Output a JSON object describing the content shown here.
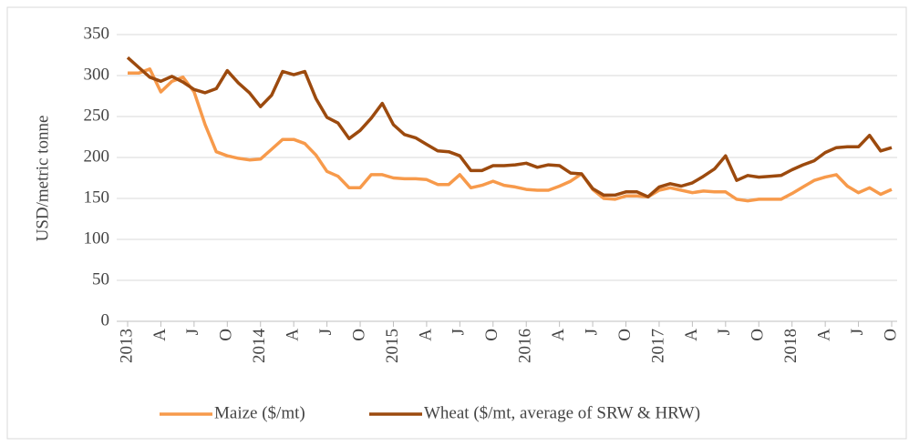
{
  "chart_data": {
    "type": "line",
    "y_label": "USD/metric tonne",
    "categories": [
      "2013",
      null,
      null,
      "A",
      null,
      null,
      "J",
      null,
      null,
      "O",
      null,
      null,
      "2014",
      null,
      null,
      "A",
      null,
      null,
      "J",
      null,
      null,
      "O",
      null,
      null,
      "2015",
      null,
      null,
      "A",
      null,
      null,
      "J",
      null,
      null,
      "O",
      null,
      null,
      "2016",
      null,
      null,
      "A",
      null,
      null,
      "J",
      null,
      null,
      "O",
      null,
      null,
      "2017",
      null,
      null,
      "A",
      null,
      null,
      "J",
      null,
      null,
      "O",
      null,
      null,
      "2018",
      null,
      null,
      "A",
      null,
      null,
      "J",
      null,
      null,
      "O"
    ],
    "series": [
      {
        "name": "Maize ($/mt)",
        "color": "#f79a4b",
        "values": [
          303,
          303,
          308,
          280,
          293,
          298,
          280,
          240,
          207,
          202,
          199,
          197,
          198,
          210,
          222,
          222,
          217,
          203,
          183,
          177,
          163,
          163,
          179,
          179,
          175,
          174,
          174,
          173,
          167,
          167,
          179,
          163,
          166,
          171,
          166,
          164,
          161,
          160,
          160,
          165,
          171,
          180,
          161,
          150,
          149,
          153,
          153,
          152,
          160,
          163,
          160,
          157,
          159,
          158,
          158,
          149,
          147,
          149,
          149,
          149,
          156,
          164,
          172,
          176,
          179,
          165,
          157,
          163,
          155,
          161
        ]
      },
      {
        "name": "Wheat ($/mt, average of SRW & HRW)",
        "color": "#9c4a0e",
        "values": [
          322,
          310,
          298,
          293,
          299,
          292,
          283,
          279,
          284,
          306,
          291,
          279,
          262,
          276,
          305,
          301,
          305,
          272,
          249,
          242,
          223,
          233,
          248,
          266,
          240,
          228,
          224,
          216,
          208,
          207,
          202,
          184,
          184,
          190,
          190,
          191,
          193,
          188,
          191,
          190,
          181,
          180,
          162,
          154,
          154,
          158,
          158,
          152,
          164,
          168,
          165,
          169,
          177,
          186,
          202,
          172,
          178,
          176,
          177,
          178,
          185,
          191,
          196,
          206,
          212,
          213,
          213,
          227,
          208,
          212
        ]
      }
    ],
    "ylim": [
      0,
      350
    ],
    "yticks": [
      0,
      50,
      100,
      150,
      200,
      250,
      300,
      350
    ],
    "grid": true,
    "legend": "bottom"
  }
}
